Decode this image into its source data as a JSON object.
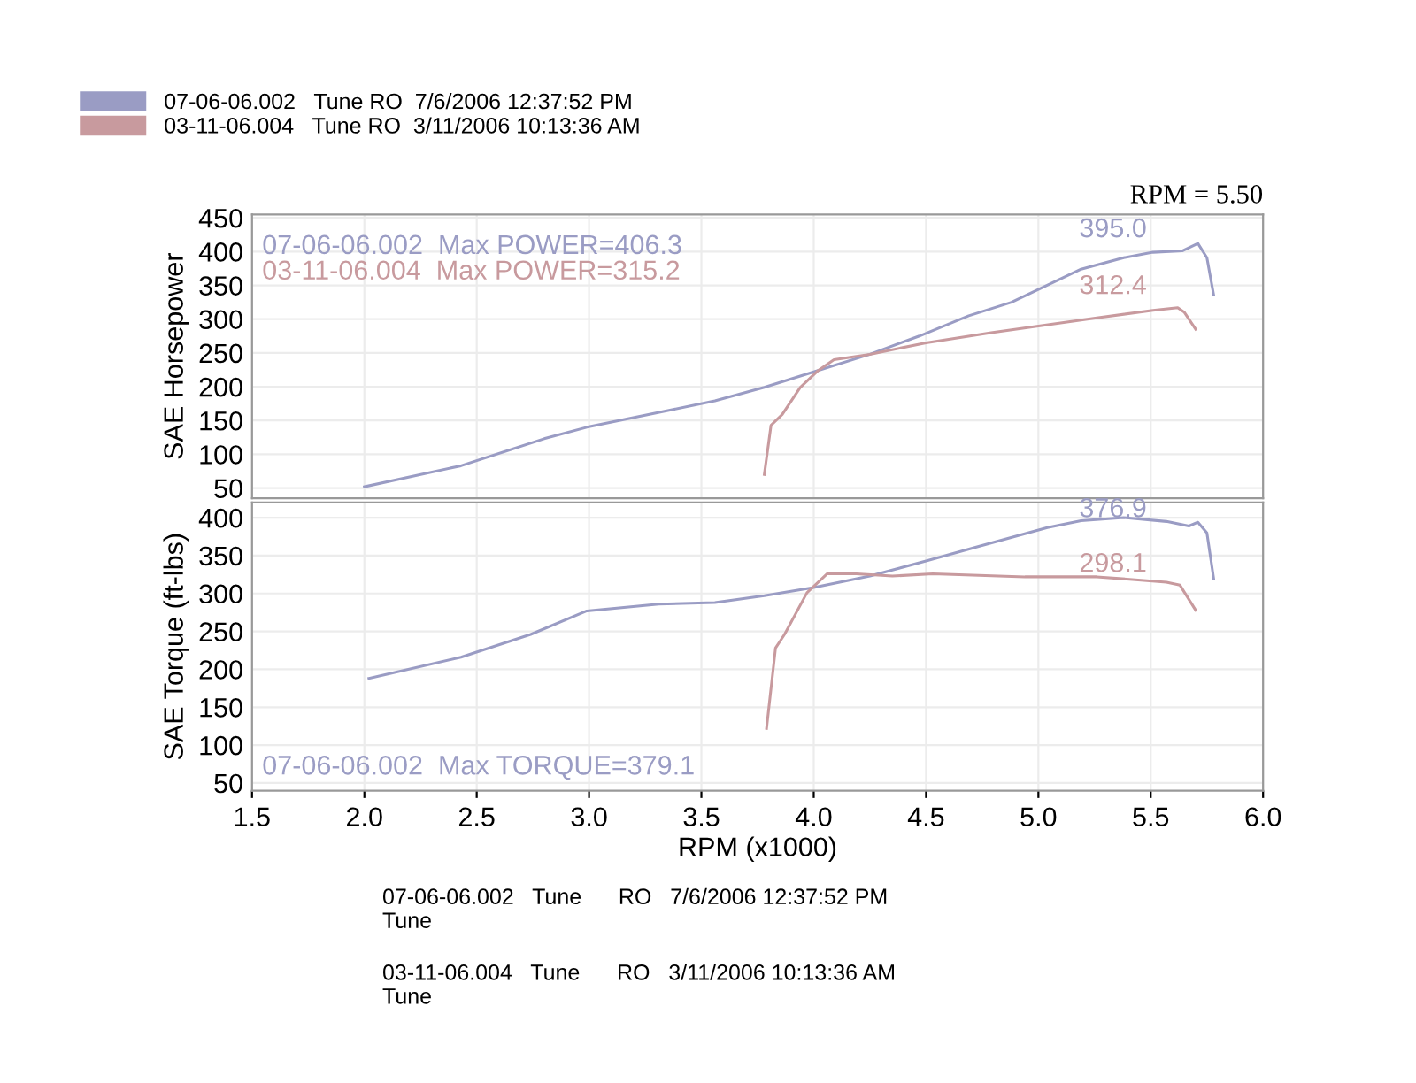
{
  "chart_data": [
    {
      "type": "line",
      "ylabel": "SAE Horsepower",
      "xlim": [
        1.5,
        6.0
      ],
      "ylim": [
        35,
        455
      ],
      "yticks": [
        50,
        100,
        150,
        200,
        250,
        300,
        350,
        400,
        450
      ],
      "tick_labels": "y",
      "grid": true,
      "legend": "top left",
      "line_style": "solid",
      "marker": "none",
      "series": [
        {
          "name": "07-06-06.002   Tune RO  7/6/2006 12:37:52 PM",
          "color": "#9a9cc4",
          "x": [
            2.0,
            2.43,
            2.8,
            2.99,
            3.37,
            3.56,
            3.78,
            4.0,
            4.25,
            4.47,
            4.69,
            4.88,
            5.19,
            5.38,
            5.51,
            5.64,
            5.71,
            5.75,
            5.78
          ],
          "values": [
            52,
            83,
            123,
            140,
            166,
            179,
            199,
            222,
            248,
            275,
            305,
            325,
            374,
            391,
            399,
            401,
            412,
            391,
            336
          ]
        },
        {
          "name": "03-11-06.004   Tune RO  3/11/2006 10:13:36 AM",
          "color": "#c89a9e",
          "x": [
            3.78,
            3.81,
            3.86,
            3.94,
            4.02,
            4.09,
            4.25,
            4.5,
            4.79,
            5.26,
            5.51,
            5.62,
            5.65,
            5.7
          ],
          "values": [
            70,
            143,
            159,
            199,
            224,
            240,
            248,
            265,
            280,
            302,
            313,
            317,
            310,
            285
          ]
        }
      ],
      "annotations": [
        "RPM = 5.50",
        "07-06-06.002  Max POWER=406.3",
        "03-11-06.004  Max POWER=315.2",
        "395.0",
        "312.4"
      ]
    },
    {
      "type": "line",
      "ylabel": "SAE Torque (ft-lbs)",
      "xlabel": "RPM (x1000)",
      "xlim": [
        1.5,
        6.0
      ],
      "ylim": [
        40,
        420
      ],
      "yticks": [
        50,
        100,
        150,
        200,
        250,
        300,
        350,
        400
      ],
      "xticks": [
        {
          "value": 1.5,
          "label": "1.5"
        },
        {
          "value": 2.0,
          "label": "2.0"
        },
        {
          "value": 2.5,
          "label": "2.5"
        },
        {
          "value": 3.0,
          "label": "3.0"
        },
        {
          "value": 3.5,
          "label": "3.5"
        },
        {
          "value": 4.0,
          "label": "4.0"
        },
        {
          "value": 4.5,
          "label": "4.5"
        },
        {
          "value": 5.0,
          "label": "5.0"
        },
        {
          "value": 5.5,
          "label": "5.5"
        },
        {
          "value": 6.0,
          "label": "6.0"
        }
      ],
      "grid": true,
      "line_style": "solid",
      "marker": "none",
      "series": [
        {
          "color": "#9a9cc4",
          "x": [
            2.02,
            2.43,
            2.74,
            2.99,
            3.31,
            3.56,
            3.78,
            4.0,
            4.25,
            4.5,
            4.72,
            5.04,
            5.19,
            5.38,
            5.57,
            5.67,
            5.71,
            5.75,
            5.78
          ],
          "values": [
            188,
            216,
            246,
            277,
            286,
            288,
            297,
            308,
            323,
            343,
            361,
            387,
            396,
            400,
            395,
            389,
            394,
            380,
            320
          ]
        },
        {
          "color": "#c89a9e",
          "x": [
            3.79,
            3.83,
            3.87,
            3.97,
            4.06,
            4.19,
            4.35,
            4.53,
            4.94,
            5.26,
            5.57,
            5.63,
            5.7
          ],
          "values": [
            122,
            228,
            246,
            301,
            326,
            326,
            323,
            326,
            322,
            322,
            315,
            311,
            278
          ]
        }
      ],
      "annotations": [
        "07-06-06.002  Max TORQUE=379.1",
        "376.9",
        "298.1",
        "07-06-06.002   Tune      RO   7/6/2006 12:37:52 PM\nTune",
        "03-11-06.004   Tune      RO   3/11/2006 10:13:36 AM\nTune"
      ]
    }
  ]
}
